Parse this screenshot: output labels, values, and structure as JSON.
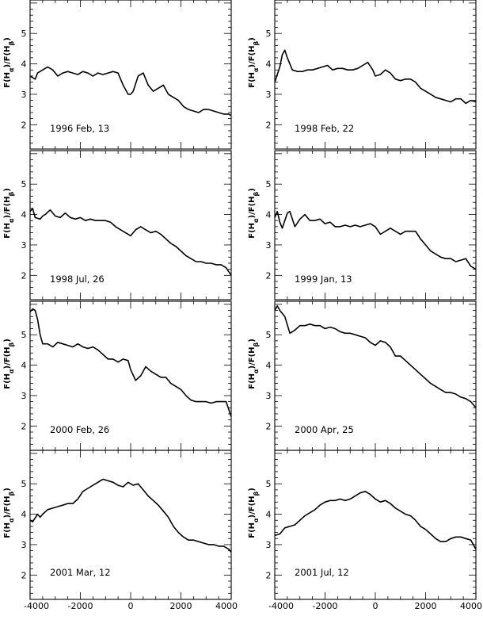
{
  "chart_data": {
    "type": "line",
    "ylabel": "F(Hα)/F(Hβ)",
    "xlim": [
      -4000,
      4000
    ],
    "ylim": [
      1.2,
      6.1
    ],
    "xticks": [
      -4000,
      -2000,
      0,
      2000,
      4000
    ],
    "yticks": [
      2,
      3,
      4,
      5
    ],
    "panels": [
      {
        "label": "1996 Feb, 13",
        "x": [
          -4000,
          -3800,
          -3700,
          -3500,
          -3300,
          -3100,
          -2900,
          -2700,
          -2500,
          -2300,
          -2100,
          -1900,
          -1700,
          -1500,
          -1300,
          -1100,
          -900,
          -700,
          -500,
          -300,
          -100,
          0,
          100,
          300,
          500,
          700,
          900,
          1100,
          1300,
          1500,
          1700,
          1900,
          2100,
          2300,
          2500,
          2700,
          2900,
          3100,
          3300,
          3500,
          3700,
          3900,
          4000
        ],
        "y": [
          3.6,
          3.5,
          3.7,
          3.8,
          3.9,
          3.8,
          3.6,
          3.7,
          3.75,
          3.7,
          3.65,
          3.75,
          3.7,
          3.6,
          3.7,
          3.65,
          3.7,
          3.75,
          3.7,
          3.3,
          3.0,
          3.0,
          3.1,
          3.6,
          3.7,
          3.3,
          3.1,
          3.2,
          3.3,
          3.0,
          2.9,
          2.8,
          2.6,
          2.5,
          2.45,
          2.4,
          2.5,
          2.5,
          2.45,
          2.4,
          2.35,
          2.35,
          2.3
        ]
      },
      {
        "label": "1998 Feb, 22",
        "x": [
          -4000,
          -3800,
          -3700,
          -3600,
          -3500,
          -3300,
          -3100,
          -2900,
          -2700,
          -2500,
          -2300,
          -2100,
          -1900,
          -1700,
          -1500,
          -1300,
          -1100,
          -900,
          -700,
          -500,
          -300,
          -100,
          0,
          200,
          400,
          600,
          800,
          1000,
          1200,
          1400,
          1600,
          1800,
          2000,
          2200,
          2400,
          2600,
          2800,
          3000,
          3200,
          3400,
          3600,
          3800,
          4000
        ],
        "y": [
          3.4,
          3.9,
          4.3,
          4.45,
          4.2,
          3.8,
          3.75,
          3.75,
          3.8,
          3.8,
          3.85,
          3.9,
          3.95,
          3.8,
          3.85,
          3.85,
          3.8,
          3.8,
          3.85,
          3.95,
          4.05,
          3.8,
          3.6,
          3.65,
          3.8,
          3.7,
          3.5,
          3.45,
          3.5,
          3.5,
          3.4,
          3.2,
          3.1,
          3.0,
          2.9,
          2.85,
          2.8,
          2.75,
          2.85,
          2.85,
          2.7,
          2.8,
          2.75
        ]
      },
      {
        "label": "1998 Jul, 26",
        "x": [
          -4000,
          -3900,
          -3800,
          -3600,
          -3500,
          -3400,
          -3200,
          -3000,
          -2800,
          -2600,
          -2400,
          -2200,
          -2000,
          -1800,
          -1600,
          -1400,
          -1200,
          -1000,
          -800,
          -600,
          -400,
          -200,
          0,
          200,
          400,
          600,
          800,
          1000,
          1200,
          1400,
          1600,
          1800,
          2000,
          2200,
          2400,
          2600,
          2800,
          3000,
          3200,
          3400,
          3600,
          3800,
          4000
        ],
        "y": [
          4.1,
          4.2,
          3.9,
          3.85,
          3.95,
          4.0,
          4.15,
          3.95,
          3.9,
          4.05,
          3.9,
          3.85,
          3.9,
          3.8,
          3.85,
          3.8,
          3.8,
          3.8,
          3.75,
          3.6,
          3.5,
          3.4,
          3.3,
          3.5,
          3.6,
          3.5,
          3.4,
          3.45,
          3.35,
          3.2,
          3.05,
          2.95,
          2.8,
          2.65,
          2.55,
          2.45,
          2.45,
          2.4,
          2.4,
          2.35,
          2.35,
          2.25,
          2.0
        ]
      },
      {
        "label": "1999 Jan, 13",
        "x": [
          -4000,
          -3900,
          -3800,
          -3700,
          -3600,
          -3500,
          -3400,
          -3200,
          -3000,
          -2800,
          -2600,
          -2400,
          -2200,
          -2000,
          -1800,
          -1600,
          -1400,
          -1200,
          -1000,
          -800,
          -600,
          -400,
          -200,
          0,
          200,
          400,
          600,
          800,
          1000,
          1200,
          1400,
          1600,
          1800,
          2000,
          2200,
          2400,
          2600,
          2800,
          3000,
          3200,
          3400,
          3600,
          3800,
          4000
        ],
        "y": [
          3.9,
          4.1,
          3.75,
          3.55,
          3.8,
          4.05,
          4.1,
          3.6,
          3.85,
          4.0,
          3.8,
          3.8,
          3.85,
          3.7,
          3.75,
          3.6,
          3.6,
          3.65,
          3.6,
          3.65,
          3.6,
          3.65,
          3.7,
          3.6,
          3.35,
          3.45,
          3.55,
          3.45,
          3.35,
          3.45,
          3.45,
          3.45,
          3.2,
          3.0,
          2.8,
          2.7,
          2.6,
          2.55,
          2.55,
          2.45,
          2.5,
          2.55,
          2.3,
          2.2
        ]
      },
      {
        "label": "2000 Feb, 26",
        "x": [
          -4000,
          -3900,
          -3800,
          -3700,
          -3600,
          -3500,
          -3300,
          -3100,
          -2900,
          -2700,
          -2500,
          -2300,
          -2100,
          -1900,
          -1700,
          -1500,
          -1300,
          -1100,
          -900,
          -700,
          -500,
          -300,
          -100,
          0,
          200,
          400,
          600,
          800,
          1000,
          1200,
          1400,
          1600,
          1800,
          2000,
          2200,
          2400,
          2600,
          2800,
          3000,
          3200,
          3400,
          3600,
          3800,
          4000
        ],
        "y": [
          5.75,
          5.85,
          5.8,
          5.5,
          5.0,
          4.7,
          4.7,
          4.6,
          4.75,
          4.7,
          4.65,
          4.6,
          4.7,
          4.6,
          4.55,
          4.6,
          4.5,
          4.35,
          4.2,
          4.2,
          4.1,
          4.2,
          4.15,
          3.85,
          3.5,
          3.65,
          3.95,
          3.8,
          3.7,
          3.6,
          3.6,
          3.4,
          3.3,
          3.2,
          3.0,
          2.85,
          2.8,
          2.8,
          2.8,
          2.75,
          2.8,
          2.8,
          2.8,
          2.3
        ]
      },
      {
        "label": "2000 Apr, 25",
        "x": [
          -4000,
          -3900,
          -3800,
          -3600,
          -3400,
          -3200,
          -3000,
          -2800,
          -2600,
          -2400,
          -2200,
          -2000,
          -1800,
          -1600,
          -1400,
          -1200,
          -1000,
          -800,
          -600,
          -400,
          -200,
          0,
          200,
          400,
          600,
          800,
          1000,
          1200,
          1400,
          1600,
          1800,
          2000,
          2200,
          2400,
          2600,
          2800,
          3000,
          3200,
          3400,
          3600,
          3800,
          4000
        ],
        "y": [
          5.8,
          5.95,
          5.8,
          5.6,
          5.05,
          5.15,
          5.3,
          5.3,
          5.35,
          5.3,
          5.3,
          5.2,
          5.25,
          5.2,
          5.1,
          5.05,
          5.05,
          5.0,
          4.95,
          4.9,
          4.75,
          4.65,
          4.8,
          4.75,
          4.6,
          4.3,
          4.3,
          4.15,
          4.0,
          3.85,
          3.7,
          3.55,
          3.4,
          3.3,
          3.2,
          3.1,
          3.1,
          3.05,
          2.95,
          2.9,
          2.8,
          2.6
        ]
      },
      {
        "label": "2001 Mar, 12",
        "x": [
          -4000,
          -3900,
          -3700,
          -3600,
          -3500,
          -3300,
          -3100,
          -2900,
          -2700,
          -2500,
          -2300,
          -2100,
          -1900,
          -1700,
          -1500,
          -1300,
          -1100,
          -900,
          -700,
          -500,
          -300,
          -100,
          0,
          100,
          300,
          500,
          700,
          900,
          1100,
          1300,
          1500,
          1700,
          1900,
          2100,
          2300,
          2500,
          2700,
          2900,
          3100,
          3300,
          3500,
          3700,
          3900,
          4000
        ],
        "y": [
          3.8,
          3.75,
          4.0,
          3.9,
          4.0,
          4.15,
          4.2,
          4.25,
          4.3,
          4.35,
          4.35,
          4.5,
          4.75,
          4.85,
          4.95,
          5.05,
          5.15,
          5.1,
          5.05,
          4.95,
          4.9,
          5.05,
          5.0,
          4.95,
          5.0,
          4.8,
          4.6,
          4.45,
          4.3,
          4.1,
          3.9,
          3.6,
          3.4,
          3.25,
          3.15,
          3.15,
          3.1,
          3.05,
          3.0,
          3.0,
          2.95,
          2.95,
          2.85,
          2.75
        ]
      },
      {
        "label": "2001 Jul, 12",
        "x": [
          -4000,
          -3800,
          -3600,
          -3400,
          -3200,
          -3000,
          -2800,
          -2600,
          -2400,
          -2200,
          -2000,
          -1800,
          -1600,
          -1400,
          -1200,
          -1000,
          -800,
          -600,
          -400,
          -200,
          0,
          200,
          400,
          600,
          800,
          1000,
          1200,
          1400,
          1600,
          1800,
          2000,
          2200,
          2400,
          2600,
          2800,
          3000,
          3200,
          3400,
          3600,
          3800,
          4000
        ],
        "y": [
          3.3,
          3.35,
          3.55,
          3.6,
          3.65,
          3.8,
          3.95,
          4.05,
          4.15,
          4.3,
          4.4,
          4.45,
          4.45,
          4.5,
          4.45,
          4.5,
          4.6,
          4.7,
          4.75,
          4.65,
          4.5,
          4.4,
          4.45,
          4.35,
          4.2,
          4.1,
          4.0,
          3.95,
          3.8,
          3.6,
          3.5,
          3.35,
          3.2,
          3.1,
          3.1,
          3.2,
          3.25,
          3.25,
          3.2,
          3.15,
          2.85
        ]
      }
    ]
  }
}
